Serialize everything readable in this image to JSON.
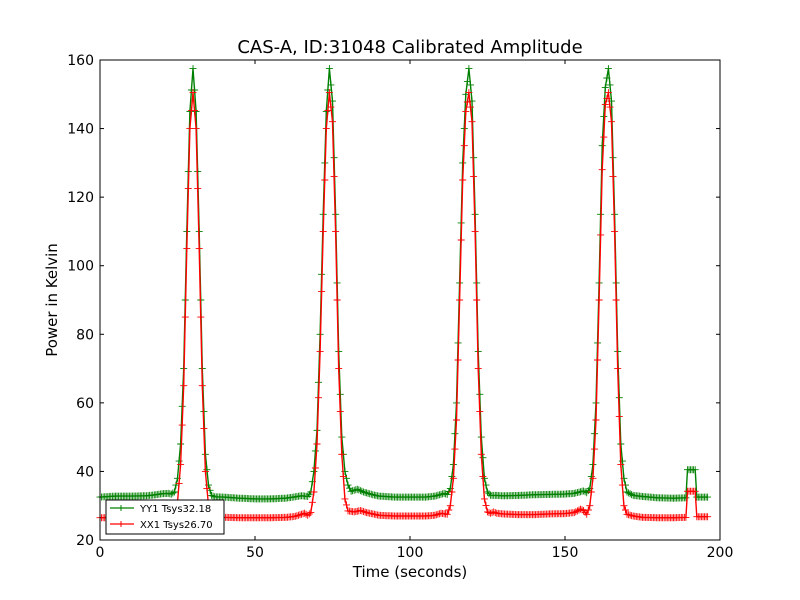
{
  "chart_data": {
    "type": "line",
    "title": "CAS-A, ID:31048 Calibrated Amplitude",
    "xlabel": "Time (seconds)",
    "ylabel": "Power in Kelvin",
    "xlim": [
      0,
      200
    ],
    "ylim": [
      20,
      160
    ],
    "xticks": [
      0,
      50,
      100,
      150,
      200
    ],
    "yticks": [
      20,
      40,
      60,
      80,
      100,
      120,
      140,
      160
    ],
    "grid": false,
    "legend_position": "lower-left",
    "marker": "plus",
    "series": [
      {
        "name": "YY1 Tsys32.18",
        "color": "#008000",
        "points": [
          [
            0,
            32.5
          ],
          [
            5,
            32.8
          ],
          [
            10,
            32.8
          ],
          [
            15,
            32.9
          ],
          [
            18,
            33.2
          ],
          [
            20,
            33.5
          ],
          [
            22,
            33.6
          ],
          [
            23,
            33.4
          ],
          [
            24,
            34
          ],
          [
            25,
            38
          ],
          [
            26,
            48
          ],
          [
            27,
            70
          ],
          [
            28,
            110
          ],
          [
            29,
            145
          ],
          [
            30,
            157.5
          ],
          [
            31,
            145
          ],
          [
            32,
            110
          ],
          [
            33,
            70
          ],
          [
            34,
            45
          ],
          [
            35,
            36
          ],
          [
            36,
            33
          ],
          [
            37,
            32.6
          ],
          [
            40,
            32.5
          ],
          [
            45,
            32.2
          ],
          [
            50,
            32.0
          ],
          [
            55,
            32.0
          ],
          [
            60,
            32.2
          ],
          [
            63,
            32.6
          ],
          [
            65,
            32.9
          ],
          [
            67,
            32.7
          ],
          [
            68,
            34
          ],
          [
            69,
            40
          ],
          [
            70,
            52
          ],
          [
            71,
            80
          ],
          [
            72,
            115
          ],
          [
            73,
            145
          ],
          [
            74,
            157.5
          ],
          [
            75,
            148
          ],
          [
            76,
            115
          ],
          [
            77,
            75
          ],
          [
            78,
            50
          ],
          [
            79,
            40
          ],
          [
            80,
            36
          ],
          [
            81,
            34.2
          ],
          [
            82,
            34.5
          ],
          [
            83,
            34.8
          ],
          [
            85,
            34.0
          ],
          [
            88,
            33.2
          ],
          [
            90,
            32.8
          ],
          [
            95,
            32.5
          ],
          [
            100,
            32.5
          ],
          [
            105,
            32.5
          ],
          [
            108,
            32.8
          ],
          [
            110,
            33.3
          ],
          [
            111,
            33.6
          ],
          [
            112,
            33.3
          ],
          [
            113,
            35
          ],
          [
            114,
            42
          ],
          [
            115,
            60
          ],
          [
            116,
            95
          ],
          [
            117,
            130
          ],
          [
            118,
            150
          ],
          [
            119,
            157.5
          ],
          [
            120,
            148
          ],
          [
            121,
            115
          ],
          [
            122,
            75
          ],
          [
            123,
            50
          ],
          [
            124,
            38
          ],
          [
            125,
            34
          ],
          [
            126,
            33
          ],
          [
            128,
            33
          ],
          [
            130,
            32.9
          ],
          [
            135,
            33
          ],
          [
            140,
            33.2
          ],
          [
            145,
            33.3
          ],
          [
            150,
            33.4
          ],
          [
            153,
            33.6
          ],
          [
            155,
            34.1
          ],
          [
            156,
            34.3
          ],
          [
            157,
            33.8
          ],
          [
            158,
            35
          ],
          [
            159,
            42
          ],
          [
            160,
            60
          ],
          [
            161,
            95
          ],
          [
            162,
            135
          ],
          [
            163,
            152
          ],
          [
            164,
            157.5
          ],
          [
            165,
            148
          ],
          [
            166,
            115
          ],
          [
            167,
            75
          ],
          [
            168,
            48
          ],
          [
            169,
            38
          ],
          [
            170,
            34
          ],
          [
            172,
            33
          ],
          [
            175,
            32.7
          ],
          [
            180,
            32.3
          ],
          [
            185,
            32.2
          ],
          [
            189,
            32.3
          ],
          [
            189.5,
            40.5
          ],
          [
            192,
            40.5
          ],
          [
            192.5,
            32.5
          ],
          [
            196,
            32.5
          ]
        ]
      },
      {
        "name": "XX1 Tsys26.70",
        "color": "#ff0000",
        "points": [
          [
            0,
            26.5
          ],
          [
            5,
            26.5
          ],
          [
            10,
            26.6
          ],
          [
            15,
            26.7
          ],
          [
            20,
            26.8
          ],
          [
            22,
            26.9
          ],
          [
            24,
            27.2
          ],
          [
            25,
            31
          ],
          [
            26,
            42
          ],
          [
            27,
            65
          ],
          [
            28,
            105
          ],
          [
            29,
            140
          ],
          [
            30,
            150.5
          ],
          [
            31,
            140
          ],
          [
            32,
            105
          ],
          [
            33,
            65
          ],
          [
            34,
            40
          ],
          [
            35,
            30
          ],
          [
            36,
            27.5
          ],
          [
            37,
            26.8
          ],
          [
            40,
            26.6
          ],
          [
            45,
            26.5
          ],
          [
            50,
            26.5
          ],
          [
            55,
            26.5
          ],
          [
            60,
            26.6
          ],
          [
            63,
            26.9
          ],
          [
            65,
            27.5
          ],
          [
            66,
            27.8
          ],
          [
            67,
            27.2
          ],
          [
            68,
            28
          ],
          [
            69,
            34
          ],
          [
            70,
            48
          ],
          [
            71,
            75
          ],
          [
            72,
            110
          ],
          [
            73,
            140
          ],
          [
            74,
            150.5
          ],
          [
            75,
            142
          ],
          [
            76,
            110
          ],
          [
            77,
            70
          ],
          [
            78,
            45
          ],
          [
            79,
            32
          ],
          [
            80,
            28.5
          ],
          [
            82,
            28.2
          ],
          [
            84,
            28.6
          ],
          [
            86,
            28.0
          ],
          [
            88,
            27.6
          ],
          [
            90,
            27.2
          ],
          [
            95,
            27.0
          ],
          [
            100,
            27.0
          ],
          [
            105,
            27.0
          ],
          [
            108,
            27.2
          ],
          [
            110,
            27.8
          ],
          [
            112,
            27.5
          ],
          [
            113,
            30
          ],
          [
            114,
            38
          ],
          [
            115,
            55
          ],
          [
            116,
            90
          ],
          [
            117,
            125
          ],
          [
            118,
            145
          ],
          [
            119,
            150.5
          ],
          [
            120,
            142
          ],
          [
            121,
            110
          ],
          [
            122,
            70
          ],
          [
            123,
            45
          ],
          [
            124,
            32
          ],
          [
            125,
            28.2
          ],
          [
            126,
            27.8
          ],
          [
            127,
            28.2
          ],
          [
            128,
            27.8
          ],
          [
            130,
            27.6
          ],
          [
            135,
            27.4
          ],
          [
            140,
            27.4
          ],
          [
            145,
            27.6
          ],
          [
            150,
            27.7
          ],
          [
            153,
            28.0
          ],
          [
            155,
            29.0
          ],
          [
            156,
            28.6
          ],
          [
            157,
            27.5
          ],
          [
            158,
            30
          ],
          [
            159,
            38
          ],
          [
            160,
            55
          ],
          [
            161,
            90
          ],
          [
            162,
            128
          ],
          [
            163,
            147
          ],
          [
            164,
            150.5
          ],
          [
            165,
            142
          ],
          [
            166,
            110
          ],
          [
            167,
            70
          ],
          [
            168,
            42
          ],
          [
            169,
            30
          ],
          [
            170,
            27.5
          ],
          [
            172,
            27.0
          ],
          [
            175,
            26.6
          ],
          [
            180,
            26.5
          ],
          [
            185,
            26.5
          ],
          [
            189,
            26.6
          ],
          [
            189.5,
            34.2
          ],
          [
            192,
            34.2
          ],
          [
            192.5,
            26.8
          ],
          [
            196,
            26.8
          ]
        ]
      }
    ]
  }
}
